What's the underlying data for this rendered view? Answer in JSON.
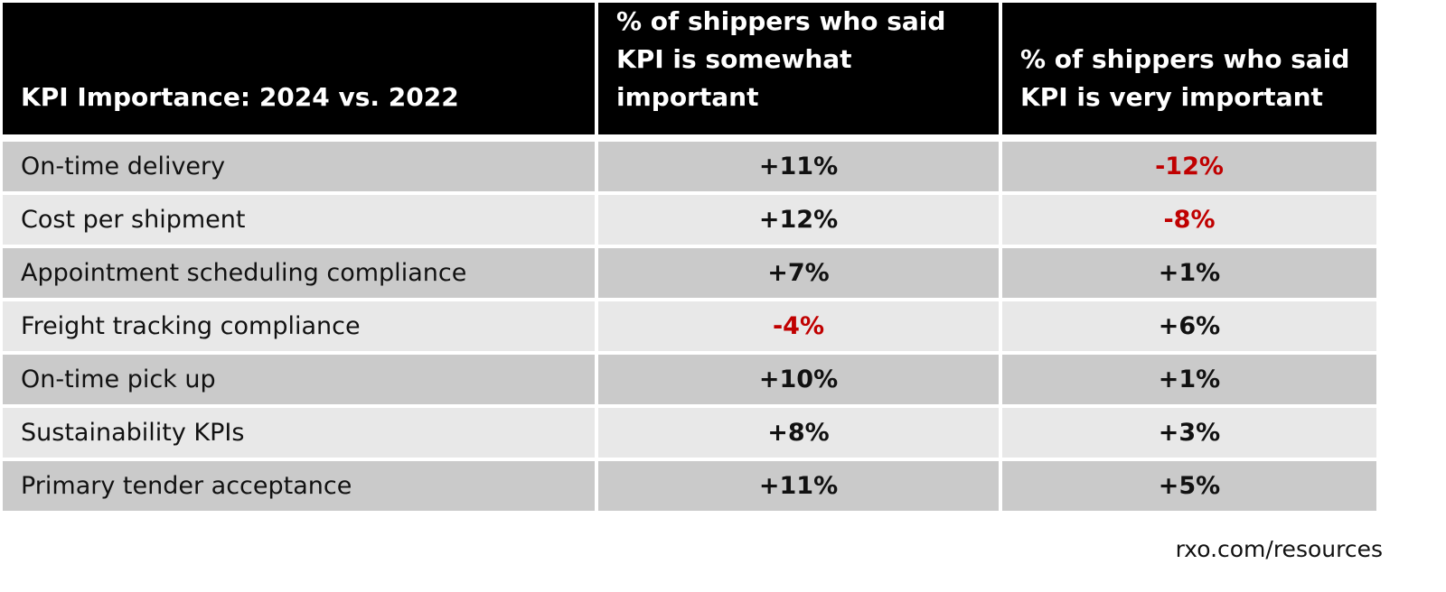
{
  "chart_data": {
    "type": "table",
    "columns": [
      "KPI Importance: 2024 vs. 2022",
      "% of shippers who said KPI is somewhat important",
      "% of shippers who said KPI is very important"
    ],
    "rows": [
      {
        "kpi": "On-time delivery",
        "somewhat": "+11%",
        "very": "-12%"
      },
      {
        "kpi": "Cost per shipment",
        "somewhat": "+12%",
        "very": "-8%"
      },
      {
        "kpi": "Appointment scheduling compliance",
        "somewhat": "+7%",
        "very": "+1%"
      },
      {
        "kpi": "Freight tracking compliance",
        "somewhat": "-4%",
        "very": "+6%"
      },
      {
        "kpi": "On-time pick up",
        "somewhat": "+10%",
        "very": "+1%"
      },
      {
        "kpi": "Sustainability KPIs",
        "somewhat": "+8%",
        "very": "+3%"
      },
      {
        "kpi": "Primary tender acceptance",
        "somewhat": "+11%",
        "very": "+5%"
      }
    ],
    "colors": {
      "header_bg": "#000000",
      "row_dark": "#cacaca",
      "row_light": "#e8e8e8",
      "negative": "#c00000"
    }
  },
  "footer": "rxo.com/resources"
}
